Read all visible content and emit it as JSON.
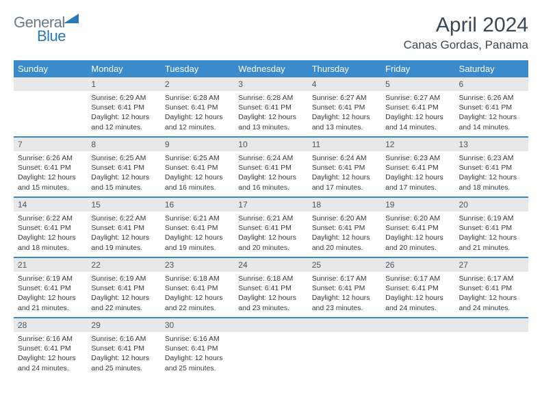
{
  "brand": {
    "general": "General",
    "blue": "Blue"
  },
  "title": "April 2024",
  "location": "Canas Gordas, Panama",
  "day_headers": [
    "Sunday",
    "Monday",
    "Tuesday",
    "Wednesday",
    "Thursday",
    "Friday",
    "Saturday"
  ],
  "colors": {
    "header_bg": "#3b8acb",
    "header_text": "#ffffff",
    "daynum_bg": "#e8e8e8",
    "row_divider": "#3b8acb",
    "title_color": "#3a4754",
    "logo_gray": "#6b7a8a",
    "logo_blue": "#2a7ab8"
  },
  "typography": {
    "title_fontsize": 30,
    "location_fontsize": 17,
    "header_fontsize": 13,
    "body_fontsize": 10.5
  },
  "start_offset": 1,
  "days": [
    {
      "n": 1,
      "sunrise": "6:29 AM",
      "sunset": "6:41 PM",
      "daylight": "12 hours and 12 minutes."
    },
    {
      "n": 2,
      "sunrise": "6:28 AM",
      "sunset": "6:41 PM",
      "daylight": "12 hours and 12 minutes."
    },
    {
      "n": 3,
      "sunrise": "6:28 AM",
      "sunset": "6:41 PM",
      "daylight": "12 hours and 13 minutes."
    },
    {
      "n": 4,
      "sunrise": "6:27 AM",
      "sunset": "6:41 PM",
      "daylight": "12 hours and 13 minutes."
    },
    {
      "n": 5,
      "sunrise": "6:27 AM",
      "sunset": "6:41 PM",
      "daylight": "12 hours and 14 minutes."
    },
    {
      "n": 6,
      "sunrise": "6:26 AM",
      "sunset": "6:41 PM",
      "daylight": "12 hours and 14 minutes."
    },
    {
      "n": 7,
      "sunrise": "6:26 AM",
      "sunset": "6:41 PM",
      "daylight": "12 hours and 15 minutes."
    },
    {
      "n": 8,
      "sunrise": "6:25 AM",
      "sunset": "6:41 PM",
      "daylight": "12 hours and 15 minutes."
    },
    {
      "n": 9,
      "sunrise": "6:25 AM",
      "sunset": "6:41 PM",
      "daylight": "12 hours and 16 minutes."
    },
    {
      "n": 10,
      "sunrise": "6:24 AM",
      "sunset": "6:41 PM",
      "daylight": "12 hours and 16 minutes."
    },
    {
      "n": 11,
      "sunrise": "6:24 AM",
      "sunset": "6:41 PM",
      "daylight": "12 hours and 17 minutes."
    },
    {
      "n": 12,
      "sunrise": "6:23 AM",
      "sunset": "6:41 PM",
      "daylight": "12 hours and 17 minutes."
    },
    {
      "n": 13,
      "sunrise": "6:23 AM",
      "sunset": "6:41 PM",
      "daylight": "12 hours and 18 minutes."
    },
    {
      "n": 14,
      "sunrise": "6:22 AM",
      "sunset": "6:41 PM",
      "daylight": "12 hours and 18 minutes."
    },
    {
      "n": 15,
      "sunrise": "6:22 AM",
      "sunset": "6:41 PM",
      "daylight": "12 hours and 19 minutes."
    },
    {
      "n": 16,
      "sunrise": "6:21 AM",
      "sunset": "6:41 PM",
      "daylight": "12 hours and 19 minutes."
    },
    {
      "n": 17,
      "sunrise": "6:21 AM",
      "sunset": "6:41 PM",
      "daylight": "12 hours and 20 minutes."
    },
    {
      "n": 18,
      "sunrise": "6:20 AM",
      "sunset": "6:41 PM",
      "daylight": "12 hours and 20 minutes."
    },
    {
      "n": 19,
      "sunrise": "6:20 AM",
      "sunset": "6:41 PM",
      "daylight": "12 hours and 20 minutes."
    },
    {
      "n": 20,
      "sunrise": "6:19 AM",
      "sunset": "6:41 PM",
      "daylight": "12 hours and 21 minutes."
    },
    {
      "n": 21,
      "sunrise": "6:19 AM",
      "sunset": "6:41 PM",
      "daylight": "12 hours and 21 minutes."
    },
    {
      "n": 22,
      "sunrise": "6:19 AM",
      "sunset": "6:41 PM",
      "daylight": "12 hours and 22 minutes."
    },
    {
      "n": 23,
      "sunrise": "6:18 AM",
      "sunset": "6:41 PM",
      "daylight": "12 hours and 22 minutes."
    },
    {
      "n": 24,
      "sunrise": "6:18 AM",
      "sunset": "6:41 PM",
      "daylight": "12 hours and 23 minutes."
    },
    {
      "n": 25,
      "sunrise": "6:17 AM",
      "sunset": "6:41 PM",
      "daylight": "12 hours and 23 minutes."
    },
    {
      "n": 26,
      "sunrise": "6:17 AM",
      "sunset": "6:41 PM",
      "daylight": "12 hours and 24 minutes."
    },
    {
      "n": 27,
      "sunrise": "6:17 AM",
      "sunset": "6:41 PM",
      "daylight": "12 hours and 24 minutes."
    },
    {
      "n": 28,
      "sunrise": "6:16 AM",
      "sunset": "6:41 PM",
      "daylight": "12 hours and 24 minutes."
    },
    {
      "n": 29,
      "sunrise": "6:16 AM",
      "sunset": "6:41 PM",
      "daylight": "12 hours and 25 minutes."
    },
    {
      "n": 30,
      "sunrise": "6:16 AM",
      "sunset": "6:41 PM",
      "daylight": "12 hours and 25 minutes."
    }
  ],
  "labels": {
    "sunrise": "Sunrise:",
    "sunset": "Sunset:",
    "daylight": "Daylight:"
  }
}
